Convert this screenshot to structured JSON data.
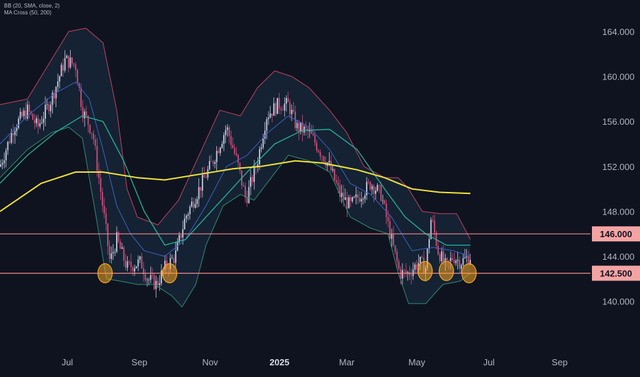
{
  "indicators": [
    "BB (20, SMA, close, 2)",
    "MA Cross (50, 200)"
  ],
  "colors": {
    "background": "#0f1320",
    "candle_up": "#c8cde0",
    "candle_down": "#d04f7a",
    "bb_upper": "#c2455f",
    "bb_lower": "#2f8f6f",
    "bb_basis": "#3f63c8",
    "bb_fill": "#18283a",
    "ma50": "#27b59a",
    "ma200": "#f0e33a",
    "level_line": "#f28b8b",
    "level_label_bg": "#f4a3a3",
    "marker": "#f5a623"
  },
  "chart_data": {
    "type": "candlestick",
    "title": "",
    "xlabel": "",
    "ylabel": "",
    "ylim": [
      138.0,
      166.3
    ],
    "y_ticks": [
      "164.000",
      "160.000",
      "156.000",
      "152.000",
      "148.000",
      "144.000",
      "140.000"
    ],
    "x_ticks": [
      {
        "label": "Jul",
        "bold": false
      },
      {
        "label": "Sep",
        "bold": false
      },
      {
        "label": "Nov",
        "bold": false
      },
      {
        "label": "2025",
        "bold": true
      },
      {
        "label": "Mar",
        "bold": false
      },
      {
        "label": "May",
        "bold": false
      },
      {
        "label": "Jul",
        "bold": false
      },
      {
        "label": "Sep",
        "bold": false
      }
    ],
    "levels": [
      {
        "value": 146.0,
        "label": "146.000"
      },
      {
        "value": 142.5,
        "label": "142.500"
      }
    ],
    "closes_path": [
      [
        0,
        152.0
      ],
      [
        20,
        155.5
      ],
      [
        40,
        157.0
      ],
      [
        55,
        155.5
      ],
      [
        75,
        158.0
      ],
      [
        95,
        161.5
      ],
      [
        110,
        161.0
      ],
      [
        120,
        157.0
      ],
      [
        135,
        155.0
      ],
      [
        145,
        150.5
      ],
      [
        155,
        146.0
      ],
      [
        160,
        143.5
      ],
      [
        170,
        145.5
      ],
      [
        185,
        143.0
      ],
      [
        205,
        143.5
      ],
      [
        215,
        142.0
      ],
      [
        228,
        141.5
      ],
      [
        240,
        143.0
      ],
      [
        255,
        144.0
      ],
      [
        270,
        147.5
      ],
      [
        290,
        150.0
      ],
      [
        310,
        152.5
      ],
      [
        330,
        155.5
      ],
      [
        345,
        152.5
      ],
      [
        358,
        149.0
      ],
      [
        375,
        152.5
      ],
      [
        388,
        156.5
      ],
      [
        405,
        157.5
      ],
      [
        420,
        157.5
      ],
      [
        432,
        155.5
      ],
      [
        450,
        155.0
      ],
      [
        465,
        153.5
      ],
      [
        480,
        152.0
      ],
      [
        495,
        149.5
      ],
      [
        510,
        148.5
      ],
      [
        525,
        149.5
      ],
      [
        540,
        150.5
      ],
      [
        555,
        149.5
      ],
      [
        570,
        145.5
      ],
      [
        582,
        142.5
      ],
      [
        595,
        142.5
      ],
      [
        610,
        143.5
      ],
      [
        620,
        143.0
      ],
      [
        628,
        147.5
      ],
      [
        638,
        144.5
      ],
      [
        650,
        143.0
      ],
      [
        660,
        144.0
      ],
      [
        670,
        143.5
      ],
      [
        685,
        144.0
      ]
    ],
    "series": [
      {
        "key": "ma200",
        "points": [
          [
            0,
            148.0
          ],
          [
            60,
            150.5
          ],
          [
            110,
            151.5
          ],
          [
            150,
            151.5
          ],
          [
            200,
            151.0
          ],
          [
            240,
            150.8
          ],
          [
            290,
            151.3
          ],
          [
            340,
            151.8
          ],
          [
            380,
            152.0
          ],
          [
            430,
            152.5
          ],
          [
            470,
            152.3
          ],
          [
            520,
            151.7
          ],
          [
            560,
            151.0
          ],
          [
            600,
            150.0
          ],
          [
            640,
            149.7
          ],
          [
            685,
            149.6
          ]
        ]
      },
      {
        "key": "ma50",
        "points": [
          [
            0,
            150.5
          ],
          [
            40,
            153.0
          ],
          [
            80,
            155.0
          ],
          [
            120,
            156.5
          ],
          [
            150,
            156.0
          ],
          [
            180,
            152.5
          ],
          [
            210,
            148.0
          ],
          [
            240,
            145.0
          ],
          [
            270,
            145.5
          ],
          [
            300,
            147.5
          ],
          [
            330,
            149.5
          ],
          [
            360,
            151.5
          ],
          [
            400,
            154.0
          ],
          [
            440,
            155.2
          ],
          [
            480,
            155.3
          ],
          [
            520,
            153.5
          ],
          [
            560,
            150.0
          ],
          [
            590,
            147.5
          ],
          [
            620,
            146.0
          ],
          [
            650,
            145.0
          ],
          [
            685,
            145.0
          ]
        ]
      },
      {
        "key": "bb_basis",
        "points": [
          [
            0,
            154.0
          ],
          [
            40,
            156.5
          ],
          [
            80,
            158.5
          ],
          [
            110,
            159.5
          ],
          [
            130,
            158.0
          ],
          [
            150,
            153.5
          ],
          [
            170,
            148.5
          ],
          [
            190,
            146.0
          ],
          [
            210,
            144.5
          ],
          [
            240,
            144.0
          ],
          [
            270,
            145.5
          ],
          [
            300,
            148.5
          ],
          [
            330,
            152.0
          ],
          [
            360,
            153.0
          ],
          [
            390,
            155.0
          ],
          [
            420,
            156.5
          ],
          [
            450,
            155.5
          ],
          [
            480,
            153.5
          ],
          [
            510,
            150.5
          ],
          [
            540,
            149.5
          ],
          [
            570,
            147.5
          ],
          [
            600,
            144.5
          ],
          [
            630,
            144.8
          ],
          [
            660,
            144.5
          ],
          [
            685,
            144.0
          ]
        ]
      },
      {
        "key": "bb_upper",
        "points": [
          [
            0,
            157.5
          ],
          [
            40,
            158.0
          ],
          [
            80,
            162.0
          ],
          [
            100,
            164.0
          ],
          [
            125,
            164.3
          ],
          [
            150,
            163.0
          ],
          [
            170,
            157.0
          ],
          [
            185,
            150.0
          ],
          [
            200,
            147.5
          ],
          [
            230,
            146.8
          ],
          [
            260,
            149.0
          ],
          [
            290,
            153.0
          ],
          [
            320,
            157.0
          ],
          [
            350,
            156.5
          ],
          [
            375,
            159.0
          ],
          [
            400,
            160.5
          ],
          [
            425,
            160.0
          ],
          [
            450,
            159.0
          ],
          [
            480,
            157.0
          ],
          [
            505,
            155.0
          ],
          [
            530,
            152.0
          ],
          [
            560,
            151.0
          ],
          [
            580,
            151.0
          ],
          [
            595,
            150.0
          ],
          [
            615,
            148.0
          ],
          [
            640,
            147.8
          ],
          [
            665,
            147.8
          ],
          [
            685,
            145.5
          ]
        ]
      },
      {
        "key": "bb_lower",
        "points": [
          [
            0,
            151.0
          ],
          [
            40,
            153.5
          ],
          [
            75,
            155.0
          ],
          [
            100,
            155.5
          ],
          [
            120,
            154.5
          ],
          [
            140,
            147.5
          ],
          [
            155,
            142.0
          ],
          [
            175,
            141.8
          ],
          [
            200,
            141.5
          ],
          [
            225,
            141.5
          ],
          [
            250,
            140.5
          ],
          [
            265,
            139.5
          ],
          [
            285,
            141.5
          ],
          [
            300,
            145.0
          ],
          [
            325,
            148.5
          ],
          [
            350,
            149.5
          ],
          [
            370,
            149.0
          ],
          [
            395,
            151.0
          ],
          [
            420,
            153.0
          ],
          [
            450,
            152.5
          ],
          [
            480,
            151.5
          ],
          [
            510,
            147.5
          ],
          [
            540,
            146.5
          ],
          [
            565,
            146.0
          ],
          [
            580,
            142.5
          ],
          [
            595,
            139.8
          ],
          [
            620,
            139.8
          ],
          [
            645,
            141.5
          ],
          [
            670,
            141.8
          ],
          [
            685,
            142.5
          ]
        ]
      }
    ],
    "markers": [
      {
        "x": 153,
        "y": 142.5
      },
      {
        "x": 247,
        "y": 142.5
      },
      {
        "x": 619,
        "y": 142.7
      },
      {
        "x": 650,
        "y": 142.7
      },
      {
        "x": 683,
        "y": 142.5
      }
    ]
  }
}
